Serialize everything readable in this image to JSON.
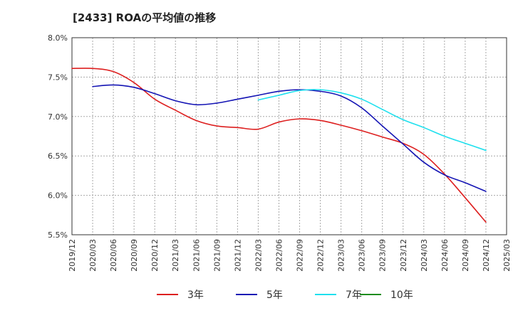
{
  "chart_data": {
    "type": "line",
    "title": "[2433]  ROAの平均値の推移",
    "ylim": [
      5.5,
      8.0
    ],
    "yticks": [
      5.5,
      6.0,
      6.5,
      7.0,
      7.5,
      8.0
    ],
    "ytick_labels": [
      "5.5%",
      "6.0%",
      "6.5%",
      "7.0%",
      "7.5%",
      "8.0%"
    ],
    "x_categories": [
      "2019/12",
      "2020/03",
      "2020/06",
      "2020/09",
      "2020/12",
      "2021/03",
      "2021/06",
      "2021/09",
      "2021/12",
      "2022/03",
      "2022/06",
      "2022/09",
      "2022/12",
      "2023/03",
      "2023/06",
      "2023/09",
      "2023/12",
      "2024/03",
      "2024/06",
      "2024/09",
      "2024/12",
      "2025/03"
    ],
    "grid": true,
    "legend_position": "bottom",
    "series": [
      {
        "name": "3年",
        "color": "#dd1f1f",
        "values": [
          7.61,
          7.61,
          7.57,
          7.43,
          7.22,
          7.08,
          6.95,
          6.88,
          6.86,
          6.84,
          6.93,
          6.97,
          6.95,
          6.89,
          6.82,
          6.74,
          6.66,
          6.52,
          6.27,
          5.97,
          5.66,
          null
        ]
      },
      {
        "name": "5年",
        "color": "#1414b4",
        "values": [
          null,
          7.38,
          7.4,
          7.37,
          7.29,
          7.2,
          7.15,
          7.17,
          7.22,
          7.27,
          7.32,
          7.34,
          7.32,
          7.26,
          7.11,
          6.88,
          6.65,
          6.42,
          6.26,
          6.16,
          6.05,
          null
        ]
      },
      {
        "name": "7年",
        "color": "#1ee0ee",
        "values": [
          null,
          null,
          null,
          null,
          null,
          null,
          null,
          null,
          null,
          7.21,
          7.27,
          7.33,
          7.34,
          7.3,
          7.22,
          7.09,
          6.96,
          6.86,
          6.75,
          6.66,
          6.57,
          null
        ]
      },
      {
        "name": "10年",
        "color": "#1e8c1e",
        "values": [
          null,
          null,
          null,
          null,
          null,
          null,
          null,
          null,
          null,
          null,
          null,
          null,
          null,
          null,
          null,
          null,
          null,
          null,
          null,
          null,
          null,
          null
        ]
      }
    ]
  }
}
